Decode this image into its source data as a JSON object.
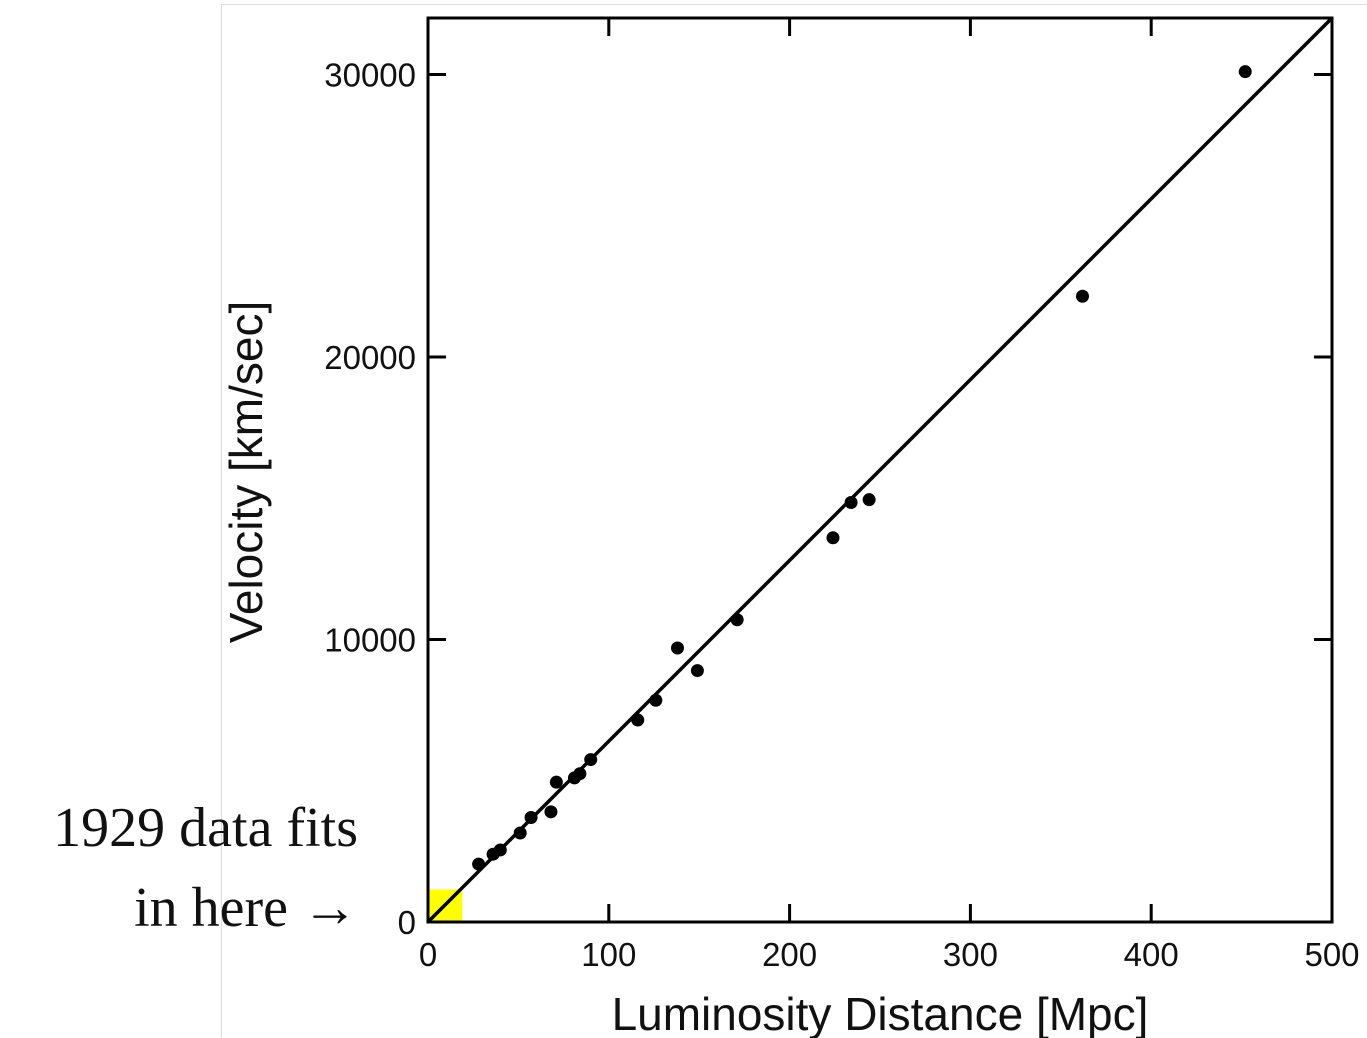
{
  "chart_data": {
    "type": "scatter",
    "xlabel": "Luminosity Distance [Mpc]",
    "ylabel": "Velocity [km/sec]",
    "xlim": [
      0,
      500
    ],
    "ylim": [
      0,
      32000
    ],
    "xticks": [
      0,
      100,
      200,
      300,
      400,
      500
    ],
    "yticks": [
      0,
      10000,
      20000,
      30000
    ],
    "grid": false,
    "legend": "none",
    "fit_line": {
      "slope": 64,
      "intercept": 0
    },
    "highlight_region": {
      "x": [
        0,
        19
      ],
      "y": [
        0,
        1150
      ],
      "color": "#ffff00"
    },
    "points": [
      {
        "x": 28,
        "y": 2050
      },
      {
        "x": 36,
        "y": 2400
      },
      {
        "x": 40,
        "y": 2550
      },
      {
        "x": 51,
        "y": 3150
      },
      {
        "x": 57,
        "y": 3700
      },
      {
        "x": 68,
        "y": 3900
      },
      {
        "x": 71,
        "y": 4950
      },
      {
        "x": 81,
        "y": 5100
      },
      {
        "x": 84,
        "y": 5250
      },
      {
        "x": 90,
        "y": 5750
      },
      {
        "x": 116,
        "y": 7150
      },
      {
        "x": 126,
        "y": 7850
      },
      {
        "x": 138,
        "y": 9700
      },
      {
        "x": 149,
        "y": 8900
      },
      {
        "x": 171,
        "y": 10700
      },
      {
        "x": 224,
        "y": 13600
      },
      {
        "x": 234,
        "y": 14850
      },
      {
        "x": 244,
        "y": 14950
      },
      {
        "x": 362,
        "y": 22150
      },
      {
        "x": 452,
        "y": 30100
      }
    ],
    "colors": {
      "marker": "#000000",
      "line": "#000000",
      "axes": "#000000"
    }
  },
  "annotation": {
    "line1": "1929 data fits",
    "line2": "in here →"
  }
}
